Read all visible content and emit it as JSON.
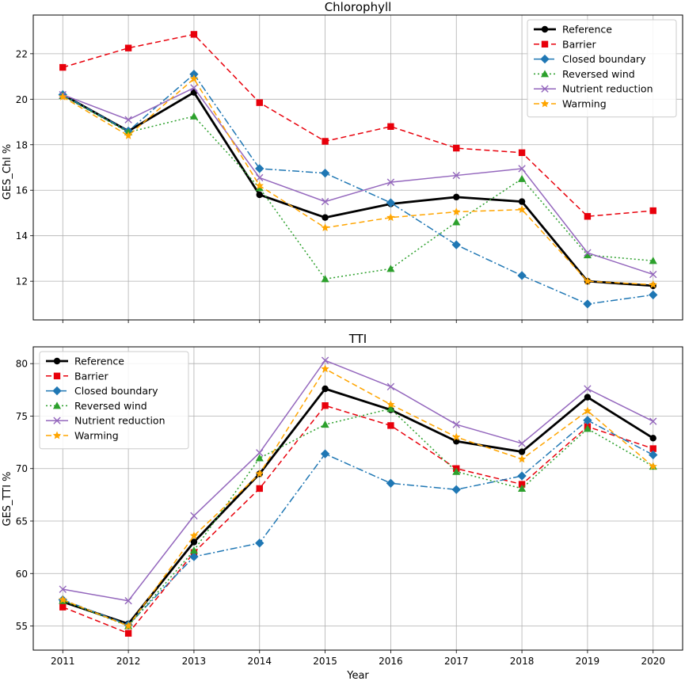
{
  "chart_data": [
    {
      "type": "line",
      "title": "Chlorophyll",
      "xlabel": "",
      "ylabel": "GES_Chl %",
      "x": [
        2011,
        2012,
        2013,
        2014,
        2015,
        2016,
        2017,
        2018,
        2019,
        2020
      ],
      "xlim": [
        2010.55,
        2020.45
      ],
      "ylim": [
        10.3,
        23.7
      ],
      "yticks": [
        12,
        14,
        16,
        18,
        20,
        22
      ],
      "grid": true,
      "legend_position": "top-right",
      "series": [
        {
          "name": "Reference",
          "color": "#000000",
          "style": "solid",
          "marker": "circle",
          "values": [
            20.2,
            18.6,
            20.3,
            15.8,
            14.8,
            15.4,
            15.7,
            15.5,
            12.0,
            11.8
          ]
        },
        {
          "name": "Barrier",
          "color": "#e8000b",
          "style": "dashed",
          "marker": "square",
          "values": [
            21.4,
            22.25,
            22.85,
            19.85,
            18.15,
            18.8,
            17.85,
            17.65,
            14.85,
            15.1
          ]
        },
        {
          "name": "Closed boundary",
          "color": "#1f77b4",
          "style": "dashdot",
          "marker": "diamond",
          "values": [
            20.2,
            18.6,
            21.1,
            16.95,
            16.75,
            15.45,
            13.6,
            12.25,
            11.0,
            11.4
          ]
        },
        {
          "name": "Reversed wind",
          "color": "#2ca02c",
          "style": "dotted",
          "marker": "triangle",
          "values": [
            20.15,
            18.55,
            19.25,
            16.1,
            12.1,
            12.55,
            14.6,
            16.5,
            13.15,
            12.9
          ]
        },
        {
          "name": "Nutrient reduction",
          "color": "#9467bd",
          "style": "solid",
          "marker": "x",
          "values": [
            20.2,
            19.1,
            20.5,
            16.55,
            15.5,
            16.35,
            16.65,
            16.95,
            13.25,
            12.3
          ]
        },
        {
          "name": "Warming",
          "color": "#ffa500",
          "style": "dashed",
          "marker": "star",
          "values": [
            20.1,
            18.4,
            20.9,
            16.2,
            14.35,
            14.8,
            15.05,
            15.15,
            12.0,
            11.85
          ]
        }
      ]
    },
    {
      "type": "line",
      "title": "TTI",
      "xlabel": "Year",
      "ylabel": "GES_TTI %",
      "x": [
        2011,
        2012,
        2013,
        2014,
        2015,
        2016,
        2017,
        2018,
        2019,
        2020
      ],
      "xlim": [
        2010.55,
        2020.45
      ],
      "ylim": [
        52.7,
        81.6
      ],
      "yticks": [
        55,
        60,
        65,
        70,
        75,
        80
      ],
      "grid": true,
      "legend_position": "top-left",
      "series": [
        {
          "name": "Reference",
          "color": "#000000",
          "style": "solid",
          "marker": "circle",
          "values": [
            57.3,
            55.2,
            63.0,
            69.5,
            77.6,
            75.6,
            72.6,
            71.6,
            76.8,
            72.9
          ]
        },
        {
          "name": "Barrier",
          "color": "#e8000b",
          "style": "dashed",
          "marker": "square",
          "values": [
            56.8,
            54.3,
            62.0,
            68.1,
            76.0,
            74.1,
            70.0,
            68.5,
            74.0,
            71.9
          ]
        },
        {
          "name": "Closed boundary",
          "color": "#1f77b4",
          "style": "dashdot",
          "marker": "diamond",
          "values": [
            57.5,
            55.1,
            61.6,
            62.9,
            71.4,
            68.6,
            68.0,
            69.3,
            74.6,
            71.3
          ]
        },
        {
          "name": "Reversed wind",
          "color": "#2ca02c",
          "style": "dotted",
          "marker": "triangle",
          "values": [
            57.4,
            55.0,
            62.2,
            71.0,
            74.2,
            75.7,
            69.7,
            68.1,
            73.8,
            70.2
          ]
        },
        {
          "name": "Nutrient reduction",
          "color": "#9467bd",
          "style": "solid",
          "marker": "x",
          "values": [
            58.5,
            57.4,
            65.5,
            71.5,
            80.3,
            77.8,
            74.2,
            72.4,
            77.6,
            74.5
          ]
        },
        {
          "name": "Warming",
          "color": "#ffa500",
          "style": "dashed",
          "marker": "star",
          "values": [
            57.5,
            55.0,
            63.6,
            69.5,
            79.5,
            76.1,
            73.0,
            70.9,
            75.5,
            70.2
          ]
        }
      ]
    }
  ]
}
